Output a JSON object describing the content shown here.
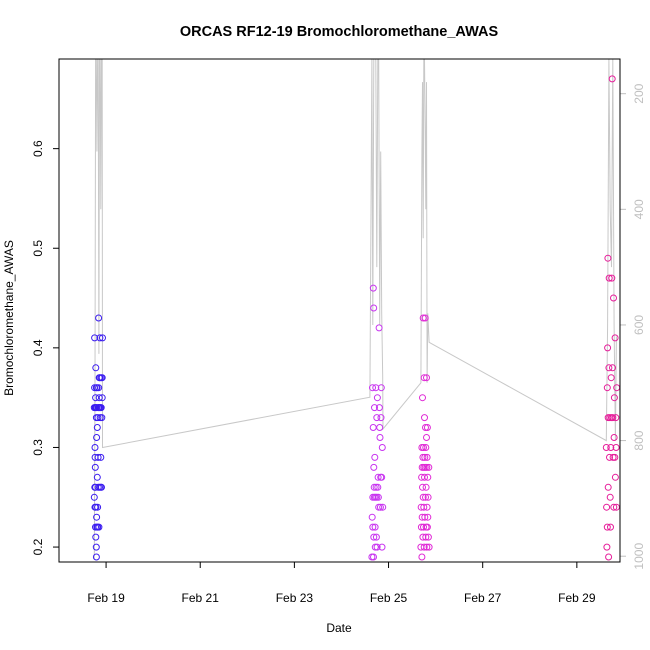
{
  "chart_data": {
    "type": "scatter",
    "title": "ORCAS RF12-19 Bromochloromethane_AWAS",
    "xlabel": "Date",
    "ylabel": "Bromochloromethane_AWAS",
    "xlim": [
      "2016-02-18",
      "2016-02-29 22:00"
    ],
    "ylim": [
      0.185,
      0.69
    ],
    "x_ticks": [
      {
        "label": "Feb 19",
        "date": "2016-02-19"
      },
      {
        "label": "Feb 21",
        "date": "2016-02-21"
      },
      {
        "label": "Feb 23",
        "date": "2016-02-23"
      },
      {
        "label": "Feb 25",
        "date": "2016-02-25"
      },
      {
        "label": "Feb 27",
        "date": "2016-02-27"
      },
      {
        "label": "Feb 29",
        "date": "2016-02-29"
      }
    ],
    "y_ticks": [
      0.2,
      0.3,
      0.4,
      0.5,
      0.6
    ],
    "y2_ticks": [
      200,
      400,
      600,
      800,
      1000
    ],
    "y2lim": [
      1010,
      140
    ],
    "y2_reversed": true,
    "grid": false,
    "colors": {
      "axis": "#000000",
      "secondary_axis": "#bfbfbf",
      "pressure_trace": "#c8c8c8",
      "flight_colors": [
        "#3b1cf0",
        "#c834f0",
        "#e02ad6",
        "#e61d9a"
      ]
    },
    "series": [
      {
        "flight_index": 0,
        "x": [
          "2016-02-18 18:00",
          "2016-02-18 18:00",
          "2016-02-18 18:10",
          "2016-02-18 18:10",
          "2016-02-18 18:15",
          "2016-02-18 18:20",
          "2016-02-18 18:20",
          "2016-02-18 18:25",
          "2016-02-18 18:30",
          "2016-02-18 18:30",
          "2016-02-18 18:35",
          "2016-02-18 18:40",
          "2016-02-18 18:40",
          "2016-02-18 18:45",
          "2016-02-18 18:45",
          "2016-02-18 18:50",
          "2016-02-18 18:50",
          "2016-02-18 19:00",
          "2016-02-18 19:00",
          "2016-02-18 19:05",
          "2016-02-18 19:05",
          "2016-02-18 19:10",
          "2016-02-18 19:10",
          "2016-02-18 19:15",
          "2016-02-18 19:20",
          "2016-02-18 19:25",
          "2016-02-18 19:30",
          "2016-02-18 19:30",
          "2016-02-18 19:40",
          "2016-02-18 19:45",
          "2016-02-18 19:50",
          "2016-02-18 19:55",
          "2016-02-18 20:00",
          "2016-02-18 20:00",
          "2016-02-18 20:10",
          "2016-02-18 20:15",
          "2016-02-18 20:20",
          "2016-02-18 20:20",
          "2016-02-18 20:30",
          "2016-02-18 20:30",
          "2016-02-18 20:40",
          "2016-02-18 20:40",
          "2016-02-18 20:50",
          "2016-02-18 20:50",
          "2016-02-18 21:00",
          "2016-02-18 21:10",
          "2016-02-18 21:20",
          "2016-02-18 21:20",
          "2016-02-18 21:30",
          "2016-02-18 21:30",
          "2016-02-18 21:40",
          "2016-02-18 21:50",
          "2016-02-18 22:00",
          "2016-02-18 22:00",
          "2016-02-18 22:10"
        ],
        "y": [
          0.25,
          0.34,
          0.41,
          0.36,
          0.26,
          0.3,
          0.24,
          0.29,
          0.34,
          0.28,
          0.22,
          0.35,
          0.26,
          0.38,
          0.21,
          0.34,
          0.24,
          0.2,
          0.36,
          0.19,
          0.33,
          0.23,
          0.31,
          0.34,
          0.22,
          0.36,
          0.27,
          0.32,
          0.24,
          0.22,
          0.33,
          0.29,
          0.34,
          0.26,
          0.43,
          0.36,
          0.34,
          0.22,
          0.37,
          0.35,
          0.34,
          0.26,
          0.37,
          0.41,
          0.33,
          0.34,
          0.29,
          0.26,
          0.37,
          0.34,
          0.26,
          0.33,
          0.35,
          0.37,
          0.41
        ]
      },
      {
        "flight_index": 1,
        "x": [
          "2016-02-24 15:30",
          "2016-02-24 15:40",
          "2016-02-24 15:50",
          "2016-02-24 16:00",
          "2016-02-24 16:00",
          "2016-02-24 16:10",
          "2016-02-24 16:15",
          "2016-02-24 16:20",
          "2016-02-24 16:25",
          "2016-02-24 16:30",
          "2016-02-24 16:30",
          "2016-02-24 16:40",
          "2016-02-24 16:45",
          "2016-02-24 16:50",
          "2016-02-24 17:00",
          "2016-02-24 17:10",
          "2016-02-24 17:15",
          "2016-02-24 17:20",
          "2016-02-24 17:30",
          "2016-02-24 17:40",
          "2016-02-24 17:50",
          "2016-02-24 18:00",
          "2016-02-24 18:00",
          "2016-02-24 18:10",
          "2016-02-24 18:20",
          "2016-02-24 18:30",
          "2016-02-24 18:40",
          "2016-02-24 18:50",
          "2016-02-24 19:00",
          "2016-02-24 19:10",
          "2016-02-24 19:20",
          "2016-02-24 19:30",
          "2016-02-24 19:40",
          "2016-02-24 19:50",
          "2016-02-24 20:00",
          "2016-02-24 20:10",
          "2016-02-24 20:20",
          "2016-02-24 20:30",
          "2016-02-24 20:40",
          "2016-02-24 20:50",
          "2016-02-24 21:00"
        ],
        "y": [
          0.19,
          0.23,
          0.36,
          0.25,
          0.22,
          0.32,
          0.46,
          0.19,
          0.44,
          0.28,
          0.21,
          0.26,
          0.25,
          0.34,
          0.29,
          0.22,
          0.2,
          0.25,
          0.36,
          0.26,
          0.21,
          0.33,
          0.25,
          0.2,
          0.35,
          0.26,
          0.27,
          0.25,
          0.24,
          0.42,
          0.34,
          0.32,
          0.31,
          0.24,
          0.27,
          0.33,
          0.36,
          0.27,
          0.2,
          0.3,
          0.24
        ]
      },
      {
        "flight_index": 2,
        "x": [
          "2016-02-25 16:30",
          "2016-02-25 16:40",
          "2016-02-25 16:45",
          "2016-02-25 16:50",
          "2016-02-25 17:00",
          "2016-02-25 17:00",
          "2016-02-25 17:10",
          "2016-02-25 17:10",
          "2016-02-25 17:20",
          "2016-02-25 17:20",
          "2016-02-25 17:30",
          "2016-02-25 17:30",
          "2016-02-25 17:40",
          "2016-02-25 17:40",
          "2016-02-25 17:50",
          "2016-02-25 17:50",
          "2016-02-25 18:00",
          "2016-02-25 18:00",
          "2016-02-25 18:10",
          "2016-02-25 18:10",
          "2016-02-25 18:20",
          "2016-02-25 18:20",
          "2016-02-25 18:30",
          "2016-02-25 18:30",
          "2016-02-25 18:40",
          "2016-02-25 18:40",
          "2016-02-25 18:50",
          "2016-02-25 18:50",
          "2016-02-25 19:00",
          "2016-02-25 19:00",
          "2016-02-25 19:10",
          "2016-02-25 19:10",
          "2016-02-25 19:20",
          "2016-02-25 19:20",
          "2016-02-25 19:30",
          "2016-02-25 19:30",
          "2016-02-25 19:40",
          "2016-02-25 19:40",
          "2016-02-25 19:50",
          "2016-02-25 19:50",
          "2016-02-25 20:00",
          "2016-02-25 20:00",
          "2016-02-25 20:10",
          "2016-02-25 20:20",
          "2016-02-25 20:30",
          "2016-02-25 20:40"
        ],
        "y": [
          0.2,
          0.24,
          0.22,
          0.27,
          0.19,
          0.3,
          0.23,
          0.28,
          0.35,
          0.26,
          0.21,
          0.29,
          0.43,
          0.25,
          0.22,
          0.3,
          0.28,
          0.24,
          0.2,
          0.37,
          0.27,
          0.33,
          0.23,
          0.29,
          0.28,
          0.43,
          0.32,
          0.25,
          0.21,
          0.3,
          0.26,
          0.22,
          0.31,
          0.37,
          0.2,
          0.28,
          0.24,
          0.29,
          0.22,
          0.32,
          0.27,
          0.23,
          0.25,
          0.21,
          0.28,
          0.2
        ]
      },
      {
        "flight_index": 3,
        "x": [
          "2016-02-29 15:00",
          "2016-02-29 15:10",
          "2016-02-29 15:20",
          "2016-02-29 15:30",
          "2016-02-29 15:30",
          "2016-02-29 15:40",
          "2016-02-29 15:50",
          "2016-02-29 16:00",
          "2016-02-29 16:00",
          "2016-02-29 16:10",
          "2016-02-29 16:20",
          "2016-02-29 16:30",
          "2016-02-29 16:40",
          "2016-02-29 16:50",
          "2016-02-29 17:00",
          "2016-02-29 17:10",
          "2016-02-29 17:20",
          "2016-02-29 17:30",
          "2016-02-29 17:40",
          "2016-02-29 17:50",
          "2016-02-29 18:00",
          "2016-02-29 18:10",
          "2016-02-29 18:20",
          "2016-02-29 18:30",
          "2016-02-29 18:40",
          "2016-02-29 18:50",
          "2016-02-29 19:00",
          "2016-02-29 19:10",
          "2016-02-29 19:20",
          "2016-02-29 19:30",
          "2016-02-29 19:40",
          "2016-02-29 19:50",
          "2016-02-29 20:00",
          "2016-02-29 20:10",
          "2016-02-29 20:20"
        ],
        "y": [
          0.3,
          0.24,
          0.2,
          0.36,
          0.22,
          0.4,
          0.49,
          0.33,
          0.26,
          0.19,
          0.38,
          0.47,
          0.29,
          0.33,
          0.25,
          0.22,
          0.3,
          0.37,
          0.33,
          0.47,
          0.67,
          0.38,
          0.33,
          0.29,
          0.45,
          0.24,
          0.31,
          0.35,
          0.29,
          0.41,
          0.27,
          0.33,
          0.3,
          0.24,
          0.36
        ]
      }
    ],
    "pressure_trace": {
      "x": [
        "2016-02-18 18:00",
        "2016-02-18 18:20",
        "2016-02-18 18:40",
        "2016-02-18 19:00",
        "2016-02-18 19:20",
        "2016-02-18 19:40",
        "2016-02-18 20:00",
        "2016-02-18 20:20",
        "2016-02-18 20:40",
        "2016-02-18 21:00",
        "2016-02-18 21:20",
        "2016-02-18 21:40",
        "2016-02-18 22:00",
        "2016-02-18 22:10",
        "2016-02-24 14:30",
        "2016-02-24 15:30",
        "2016-02-24 16:00",
        "2016-02-24 16:30",
        "2016-02-24 17:00",
        "2016-02-24 17:30",
        "2016-02-24 18:00",
        "2016-02-24 18:30",
        "2016-02-24 19:00",
        "2016-02-24 19:30",
        "2016-02-24 20:00",
        "2016-02-24 20:30",
        "2016-02-24 21:00",
        "2016-02-24 21:10",
        "2016-02-25 16:30",
        "2016-02-25 17:00",
        "2016-02-25 17:20",
        "2016-02-25 17:40",
        "2016-02-25 18:00",
        "2016-02-25 18:20",
        "2016-02-25 18:40",
        "2016-02-25 19:00",
        "2016-02-25 19:20",
        "2016-02-25 19:40",
        "2016-02-25 20:00",
        "2016-02-25 20:40",
        "2016-02-29 15:00",
        "2016-02-29 15:40",
        "2016-02-29 16:20",
        "2016-02-29 17:00",
        "2016-02-29 17:40",
        "2016-02-29 18:20",
        "2016-02-29 19:00",
        "2016-02-29 19:40",
        "2016-02-29 20:10"
      ],
      "pressure_hPa": [
        1005,
        700,
        140,
        140,
        300,
        140,
        140,
        650,
        140,
        140,
        400,
        140,
        140,
        812,
        725,
        140,
        600,
        140,
        140,
        140,
        500,
        140,
        140,
        600,
        300,
        580,
        690,
        780,
        700,
        300,
        180,
        450,
        140,
        140,
        260,
        400,
        180,
        700,
        580,
        630,
        800,
        600,
        140,
        400,
        500,
        140,
        600,
        800,
        620
      ]
    }
  }
}
